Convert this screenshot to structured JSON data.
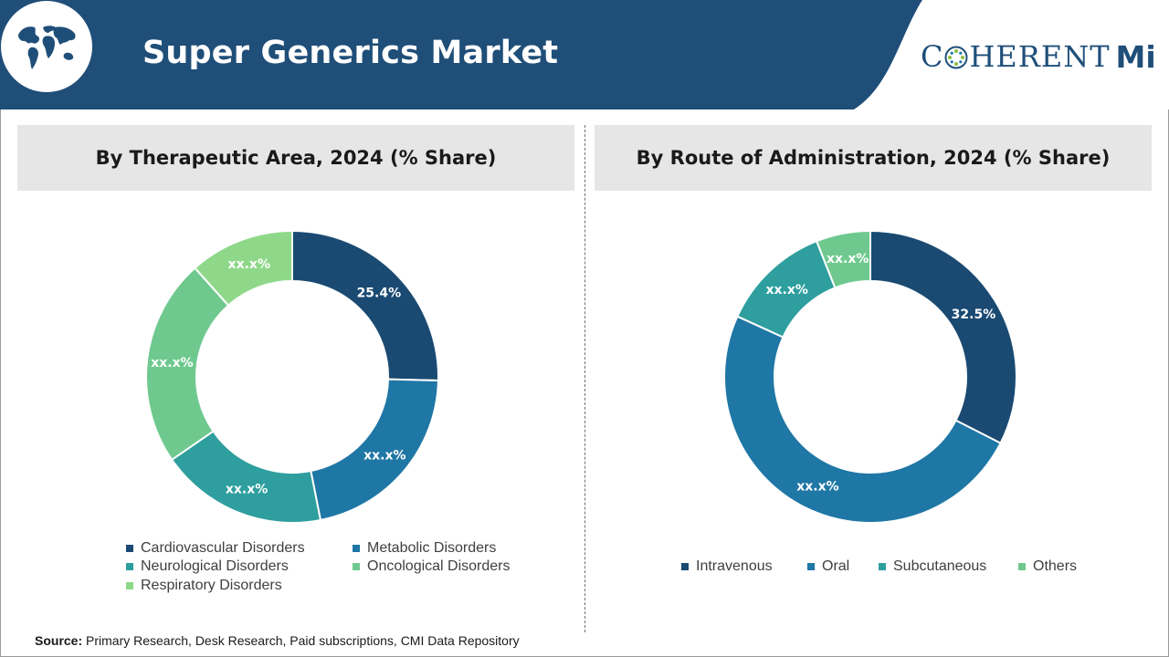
{
  "header": {
    "title": "Super Generics Market",
    "logo_left": "C",
    "logo_right": "HERENT",
    "logo_mi": "Mi"
  },
  "colors": {
    "header_bg": "#1f4e79",
    "navy": "#1a4a72",
    "teal_blue": "#1f77a5",
    "teal": "#2e9e9e",
    "light_green": "#6fc98f",
    "pale_green": "#8fd88a"
  },
  "chart_data": [
    {
      "type": "pie",
      "title": "By Therapeutic Area, 2024 (% Share)",
      "donut": true,
      "categories": [
        "Cardiovascular Disorders",
        "Metabolic Disorders",
        "Neurological Disorders",
        "Oncological Disorders",
        "Respiratory Disorders"
      ],
      "values": [
        25.4,
        21.5,
        18.5,
        23.0,
        11.6
      ],
      "labels": [
        "25.4%",
        "xx.x%",
        "xx.x%",
        "xx.x%",
        "xx.x%"
      ],
      "colors": [
        "#1a4a72",
        "#1f77a5",
        "#2e9e9e",
        "#6fc98f",
        "#8fd88a"
      ],
      "legend": "bottom"
    },
    {
      "type": "pie",
      "title": "By Route of Administration, 2024 (% Share)",
      "donut": true,
      "categories": [
        "Intravenous",
        "Oral",
        "Subcutaneous",
        "Others"
      ],
      "values": [
        32.5,
        49.3,
        12.2,
        6.0
      ],
      "labels": [
        "32.5%",
        "xx.x%",
        "xx.x%",
        "xx.x%"
      ],
      "colors": [
        "#1a4a72",
        "#1f77a5",
        "#2e9e9e",
        "#6fc98f"
      ],
      "legend": "bottom"
    }
  ],
  "source": {
    "label": "Source:",
    "text": " Primary Research, Desk Research, Paid subscriptions, CMI Data Repository"
  }
}
